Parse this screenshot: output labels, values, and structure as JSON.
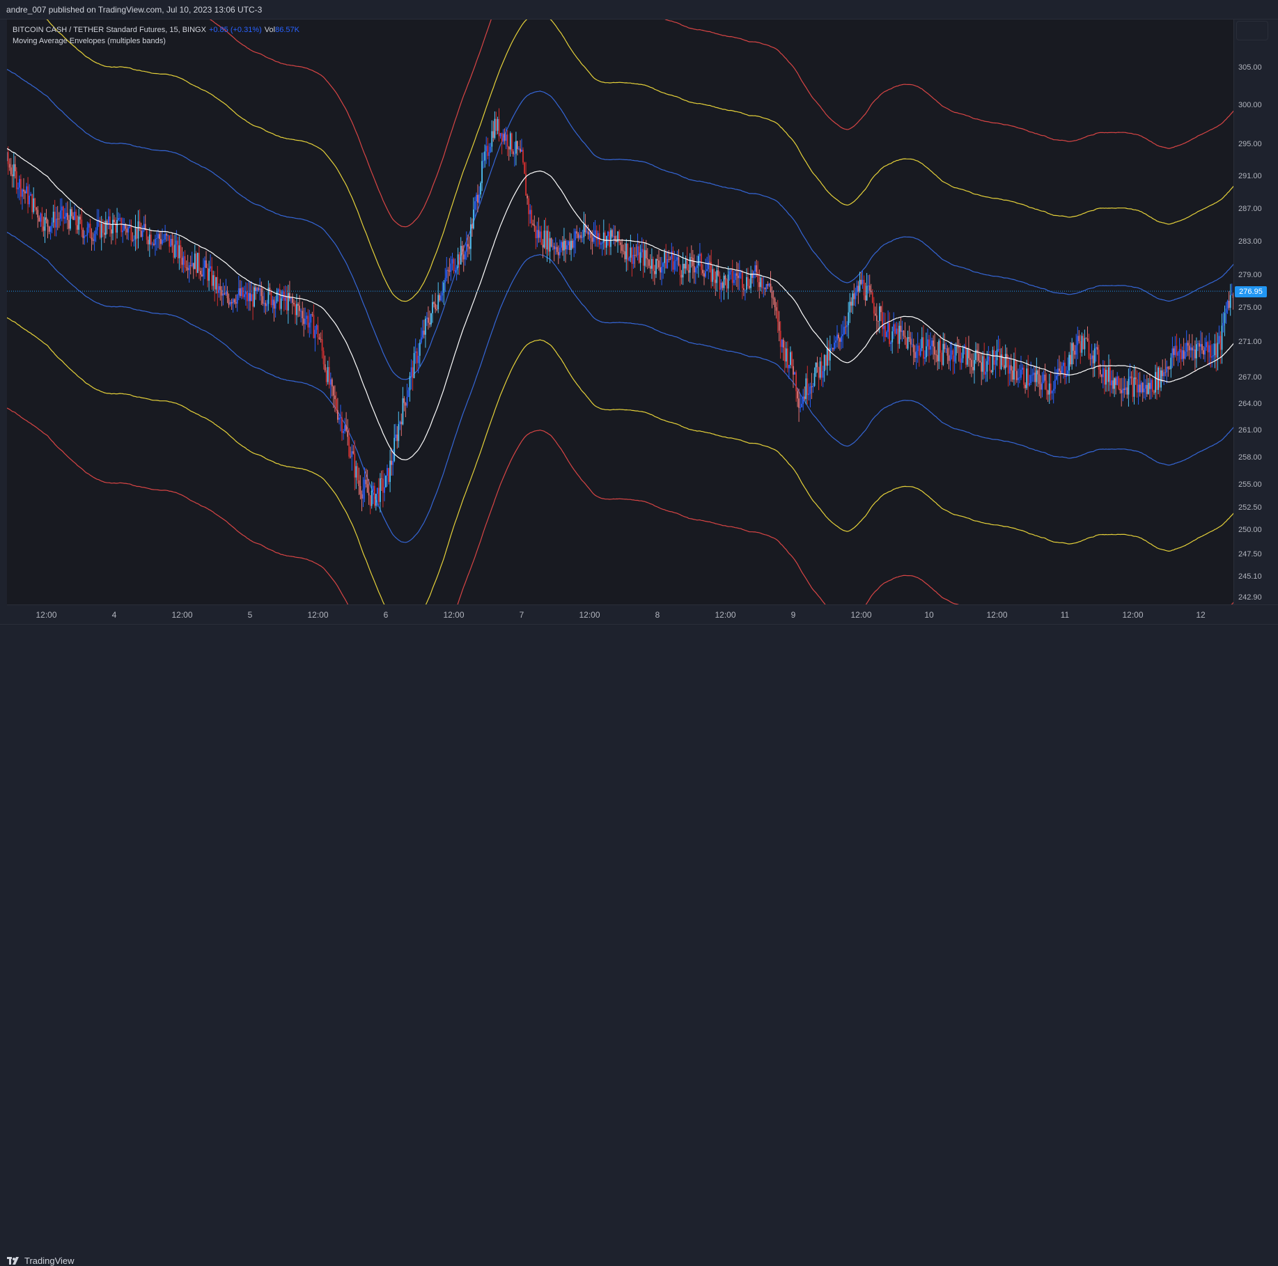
{
  "header": {
    "publish_text": "andre_007 published on TradingView.com, Jul 10, 2023 13:06 UTC-3"
  },
  "legend": {
    "symbol": "BITCOIN CASH / TETHER Standard Futures, 15, BINGX",
    "change": "+0.85 (+0.31%)",
    "vol_label": "Vol",
    "vol_value": "86.57K",
    "indicator": "Moving Average Envelopes (multiples bands)"
  },
  "footer": {
    "logo_text": "TradingView"
  },
  "colors": {
    "background": "#181a21",
    "candle_down": "#e57373",
    "candle_down_strong": "#d32f2f",
    "candle_up": "#2962ff",
    "candle_up_light": "#4fc3f7",
    "ma_line": "#ffffff",
    "band_inner": "#3566d6",
    "band_middle": "#e6d23a",
    "band_outer": "#d84545",
    "last_price_line": "#2196f3"
  },
  "chart_data": {
    "type": "candlestick",
    "symbol": "BITCOIN CASH / TETHER Standard Futures",
    "interval": "15",
    "exchange": "BINGX",
    "last_price": "276.95",
    "y_ticks": [
      "305.00",
      "300.00",
      "295.00",
      "291.00",
      "287.00",
      "283.00",
      "279.00",
      "275.00",
      "271.00",
      "267.00",
      "264.00",
      "261.00",
      "258.00",
      "255.00",
      "252.50",
      "250.00",
      "247.50",
      "245.10",
      "242.90"
    ],
    "x_ticks": [
      "12:00",
      "4",
      "12:00",
      "5",
      "12:00",
      "6",
      "12:00",
      "7",
      "12:00",
      "8",
      "12:00",
      "9",
      "12:00",
      "10",
      "12:00",
      "11",
      "12:00",
      "12"
    ],
    "price_path": [
      [
        3.0,
        296.0
      ],
      [
        3.1,
        294.5
      ],
      [
        3.2,
        293.0
      ],
      [
        3.3,
        290.0
      ],
      [
        3.4,
        287.5
      ],
      [
        3.5,
        285.0
      ],
      [
        3.6,
        286.0
      ],
      [
        3.7,
        285.5
      ],
      [
        3.8,
        284.0
      ],
      [
        3.9,
        284.5
      ],
      [
        4.0,
        285.0
      ],
      [
        4.1,
        284.5
      ],
      [
        4.2,
        284.0
      ],
      [
        4.3,
        283.5
      ],
      [
        4.4,
        283.0
      ],
      [
        4.5,
        281.0
      ],
      [
        4.6,
        280.5
      ],
      [
        4.7,
        279.0
      ],
      [
        4.8,
        276.0
      ],
      [
        4.9,
        276.5
      ],
      [
        5.0,
        276.0
      ],
      [
        5.1,
        276.5
      ],
      [
        5.2,
        276.0
      ],
      [
        5.3,
        275.5
      ],
      [
        5.4,
        274.0
      ],
      [
        5.5,
        272.0
      ],
      [
        5.6,
        265.0
      ],
      [
        5.7,
        261.0
      ],
      [
        5.8,
        255.0
      ],
      [
        5.9,
        253.5
      ],
      [
        6.0,
        255.0
      ],
      [
        6.05,
        258.0
      ],
      [
        6.1,
        262.0
      ],
      [
        6.2,
        268.0
      ],
      [
        6.3,
        273.0
      ],
      [
        6.4,
        277.0
      ],
      [
        6.5,
        280.5
      ],
      [
        6.6,
        282.0
      ],
      [
        6.7,
        291.0
      ],
      [
        6.8,
        297.5
      ],
      [
        6.9,
        295.5
      ],
      [
        7.0,
        293.0
      ],
      [
        7.05,
        287.0
      ],
      [
        7.1,
        284.0
      ],
      [
        7.2,
        283.0
      ],
      [
        7.3,
        282.0
      ],
      [
        7.4,
        283.5
      ],
      [
        7.5,
        284.0
      ],
      [
        7.6,
        283.5
      ],
      [
        7.7,
        283.0
      ],
      [
        7.8,
        281.5
      ],
      [
        7.9,
        281.0
      ],
      [
        8.0,
        280.0
      ],
      [
        8.1,
        281.0
      ],
      [
        8.2,
        279.5
      ],
      [
        8.3,
        280.5
      ],
      [
        8.4,
        279.0
      ],
      [
        8.5,
        278.0
      ],
      [
        8.6,
        279.0
      ],
      [
        8.65,
        278.0
      ],
      [
        8.7,
        279.0
      ],
      [
        8.8,
        278.0
      ],
      [
        8.85,
        276.5
      ],
      [
        8.9,
        271.0
      ],
      [
        9.0,
        268.0
      ],
      [
        9.05,
        264.0
      ],
      [
        9.1,
        266.0
      ],
      [
        9.2,
        268.0
      ],
      [
        9.3,
        270.0
      ],
      [
        9.4,
        274.0
      ],
      [
        9.5,
        278.0
      ],
      [
        9.6,
        275.0
      ],
      [
        9.7,
        272.0
      ],
      [
        9.8,
        271.5
      ],
      [
        9.9,
        270.0
      ],
      [
        10.0,
        270.5
      ],
      [
        10.1,
        269.5
      ],
      [
        10.2,
        270.0
      ],
      [
        10.3,
        269.0
      ],
      [
        10.4,
        268.5
      ],
      [
        10.5,
        269.0
      ],
      [
        10.6,
        268.0
      ],
      [
        10.7,
        267.0
      ],
      [
        10.8,
        266.5
      ],
      [
        10.9,
        266.0
      ],
      [
        11.0,
        268.0
      ],
      [
        11.1,
        271.0
      ],
      [
        11.2,
        270.0
      ],
      [
        11.3,
        267.0
      ],
      [
        11.4,
        266.5
      ],
      [
        11.5,
        266.0
      ],
      [
        11.6,
        265.5
      ],
      [
        11.7,
        267.0
      ],
      [
        11.8,
        269.5
      ],
      [
        11.9,
        270.0
      ],
      [
        12.0,
        270.5
      ],
      [
        12.1,
        270.0
      ],
      [
        12.15,
        271.0
      ],
      [
        12.2,
        276.0
      ],
      [
        12.3,
        277.5
      ],
      [
        12.35,
        277.0
      ]
    ],
    "ma_envelope_multiples": [
      0.035,
      0.07,
      0.105
    ]
  }
}
